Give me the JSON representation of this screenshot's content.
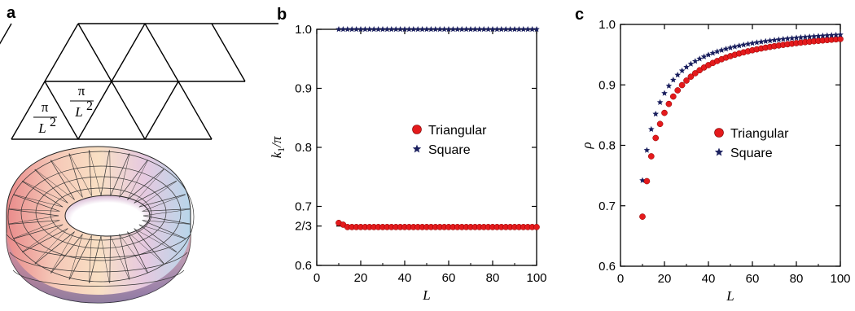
{
  "panels": {
    "a": {
      "label": "a",
      "numerator": "π",
      "denominator": "L",
      "exponent": "2"
    },
    "b": {
      "label": "b"
    },
    "c": {
      "label": "c"
    }
  },
  "colors": {
    "triangular": "#e41a1c",
    "square": "#1a1f5e",
    "torus_pink": "#f2b8b8",
    "torus_peach": "#f8d7b0",
    "torus_violet": "#b9a8d6"
  },
  "chart_data": [
    {
      "panel": "b",
      "type": "scatter",
      "xlabel": "L",
      "ylabel": "k1/π",
      "ylabel_main": "k",
      "ylabel_sub": "1",
      "ylabel_rest": "/π",
      "xlim": [
        0,
        100
      ],
      "ylim": [
        0.6,
        1.0
      ],
      "xticks": [
        0,
        20,
        40,
        60,
        80,
        100
      ],
      "yticks": [
        {
          "value": 0.6,
          "label": "0.6"
        },
        {
          "value": 0.6667,
          "label": "2/3"
        },
        {
          "value": 0.7,
          "label": "0.7"
        },
        {
          "value": 0.8,
          "label": "0.8"
        },
        {
          "value": 0.9,
          "label": "0.9"
        },
        {
          "value": 1.0,
          "label": "1.0"
        }
      ],
      "x_start": 10,
      "x_end": 100,
      "x_step": 2,
      "series": [
        {
          "name": "Triangular",
          "marker": "circle",
          "values_note": "",
          "y_first": 0.672,
          "y_second": 0.669,
          "y_rest": 0.665
        },
        {
          "name": "Square",
          "marker": "star",
          "y_all": 1.0
        }
      ],
      "legend": "center-right"
    },
    {
      "panel": "c",
      "type": "scatter",
      "xlabel": "L",
      "ylabel": "ρ",
      "xlim": [
        0,
        100
      ],
      "ylim": [
        0.6,
        1.0
      ],
      "xticks": [
        0,
        20,
        40,
        60,
        80,
        100
      ],
      "yticks": [
        {
          "value": 0.6,
          "label": "0.6"
        },
        {
          "value": 0.7,
          "label": "0.7"
        },
        {
          "value": 0.8,
          "label": "0.8"
        },
        {
          "value": 0.9,
          "label": "0.9"
        },
        {
          "value": 1.0,
          "label": "1.0"
        }
      ],
      "x_start": 10,
      "x_end": 100,
      "x_step": 2,
      "series": [
        {
          "name": "Triangular",
          "marker": "circle",
          "model_a": 0.92,
          "model_b": 0.038
        },
        {
          "name": "Square",
          "marker": "star",
          "model_a": 0.75,
          "model_b": 0.031
        }
      ],
      "legend": "center-right"
    }
  ]
}
